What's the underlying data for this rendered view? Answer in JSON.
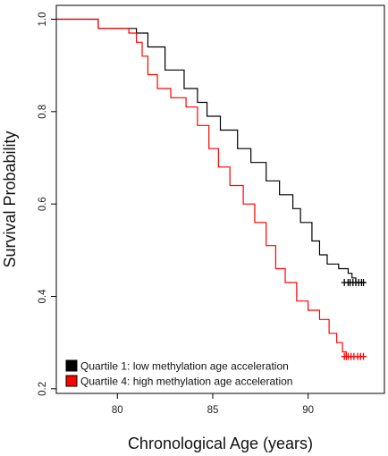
{
  "chart_data": {
    "type": "line",
    "subtype": "kaplan-meier step",
    "xlabel": "Chronological Age (years)",
    "ylabel": "Survival Probability",
    "xlim": [
      76.8,
      94.0
    ],
    "ylim": [
      0.19,
      1.03
    ],
    "x_ticks": [
      80,
      85,
      90
    ],
    "y_ticks": [
      0.2,
      0.4,
      0.6,
      0.8,
      1.0
    ],
    "x_tick_labels": [
      "80",
      "85",
      "90"
    ],
    "y_tick_labels": [
      "0.2",
      "0.4",
      "0.6",
      "0.8",
      "1.0"
    ],
    "grid": false,
    "legend_position": "bottom-left",
    "series": [
      {
        "name": "Quartile 1: low methylation age acceleration",
        "color": "#000000",
        "x": [
          76.8,
          79.0,
          81.0,
          81.6,
          82.5,
          83.5,
          84.2,
          84.7,
          85.4,
          86.3,
          87.0,
          87.8,
          88.5,
          89.2,
          89.6,
          90.2,
          90.6,
          91.0,
          91.6,
          92.1,
          92.3,
          92.5,
          92.7,
          93.0
        ],
        "y": [
          1.0,
          0.98,
          0.97,
          0.94,
          0.89,
          0.85,
          0.82,
          0.79,
          0.76,
          0.72,
          0.69,
          0.65,
          0.62,
          0.59,
          0.56,
          0.52,
          0.49,
          0.47,
          0.46,
          0.45,
          0.44,
          0.43,
          0.43,
          0.43
        ],
        "censor_x": [
          91.9,
          92.1,
          92.2,
          92.35,
          92.5,
          92.65,
          92.8,
          92.9
        ]
      },
      {
        "name": "Quartile 4: high methylation age acceleration",
        "color": "#ff0000",
        "x": [
          76.8,
          79.0,
          80.6,
          81.0,
          81.3,
          81.6,
          82.1,
          82.8,
          83.6,
          84.2,
          84.8,
          85.3,
          85.9,
          86.6,
          87.2,
          87.8,
          88.3,
          88.8,
          89.4,
          90.0,
          90.6,
          91.1,
          91.5,
          91.8,
          92.0,
          92.5,
          93.0
        ],
        "y": [
          1.0,
          0.98,
          0.97,
          0.95,
          0.92,
          0.88,
          0.85,
          0.83,
          0.81,
          0.77,
          0.72,
          0.68,
          0.64,
          0.6,
          0.56,
          0.51,
          0.46,
          0.43,
          0.39,
          0.37,
          0.35,
          0.32,
          0.3,
          0.28,
          0.27,
          0.27,
          0.27
        ],
        "censor_x": [
          91.9,
          92.0,
          92.1,
          92.25,
          92.4,
          92.6,
          92.75,
          92.9
        ]
      }
    ]
  }
}
